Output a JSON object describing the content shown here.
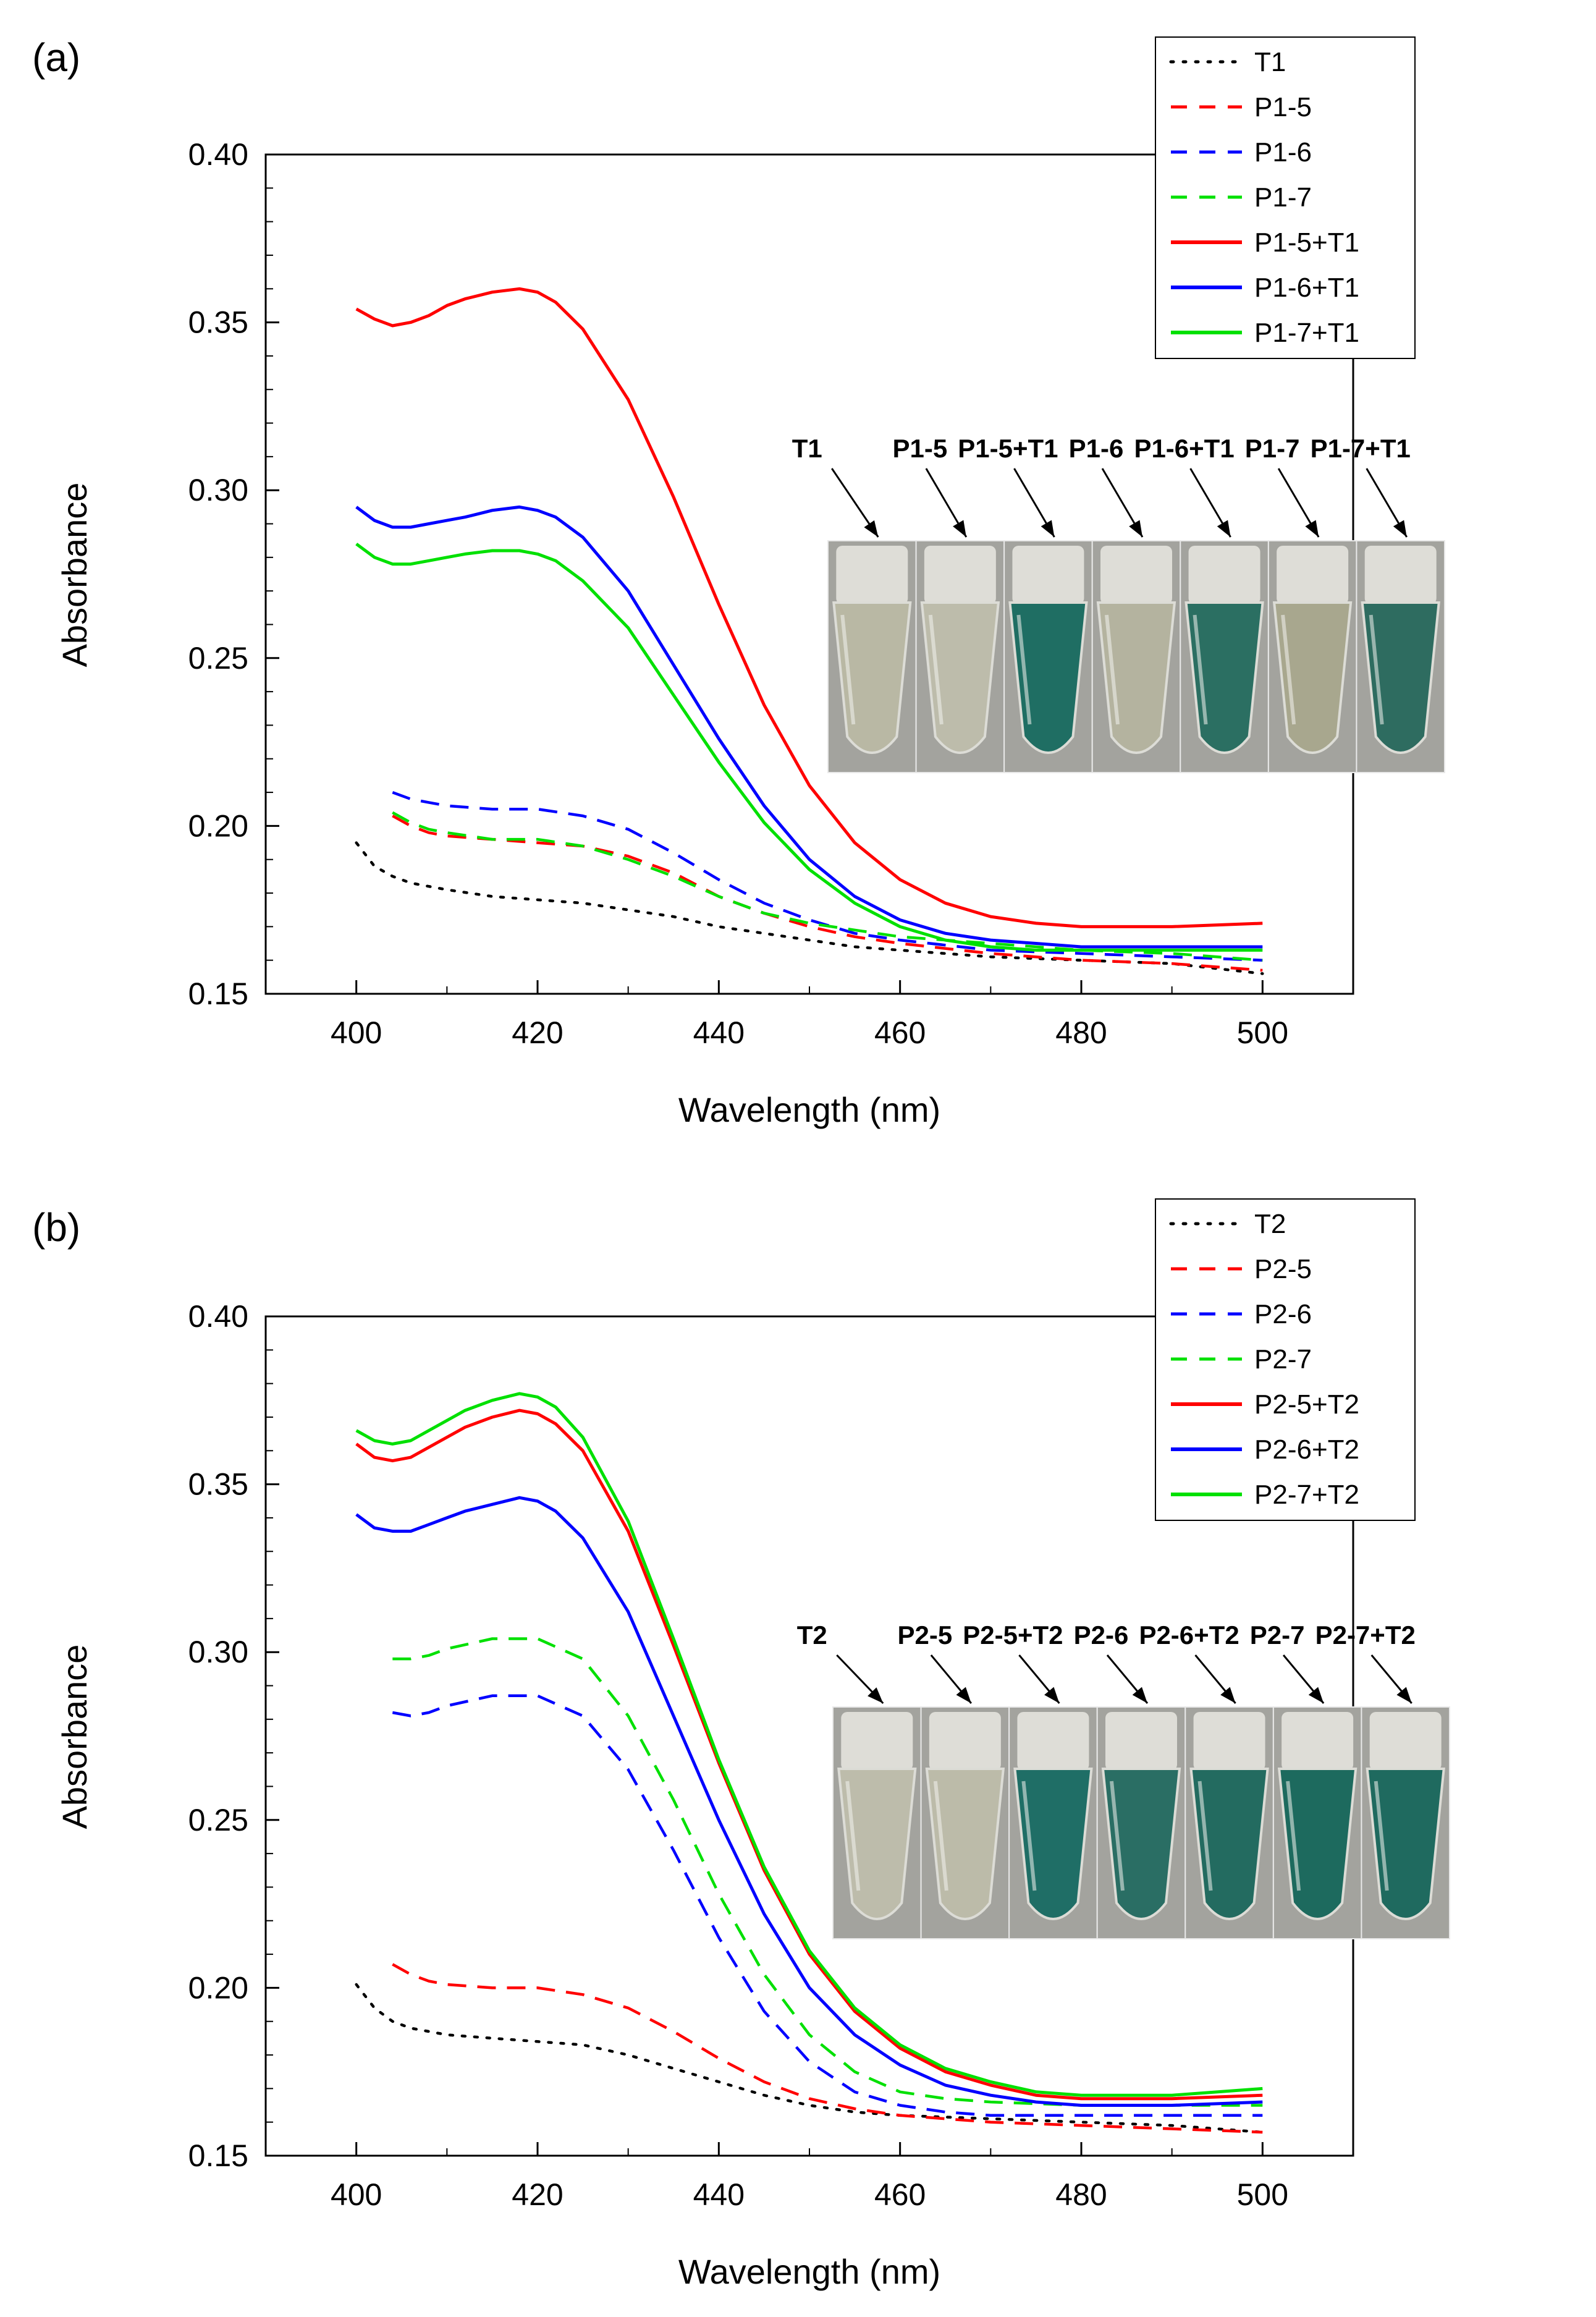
{
  "chart_data": [
    {
      "panel_label": "(a)",
      "type": "line",
      "xlabel": "Wavelength (nm)",
      "ylabel": "Absorbance",
      "xlim": [
        390,
        510
      ],
      "ylim": [
        0.15,
        0.4
      ],
      "xticks": [
        "400",
        "420",
        "440",
        "460",
        "480",
        "500"
      ],
      "yticks": [
        "0.15",
        "0.20",
        "0.25",
        "0.30",
        "0.35",
        "0.40"
      ],
      "legend_position": "top-right",
      "series": [
        {
          "name": "T1",
          "style": "dotted",
          "color": "#000000",
          "x": [
            400,
            402,
            404,
            406,
            408,
            410,
            415,
            420,
            425,
            430,
            435,
            440,
            445,
            450,
            455,
            460,
            470,
            480,
            490,
            500
          ],
          "y": [
            0.195,
            0.188,
            0.185,
            0.183,
            0.182,
            0.181,
            0.179,
            0.178,
            0.177,
            0.175,
            0.173,
            0.17,
            0.168,
            0.166,
            0.164,
            0.163,
            0.161,
            0.16,
            0.159,
            0.156
          ]
        },
        {
          "name": "P1-5",
          "style": "dashed",
          "color": "#ff0000",
          "x": [
            404,
            406,
            408,
            410,
            415,
            420,
            425,
            430,
            435,
            440,
            445,
            450,
            455,
            460,
            470,
            480,
            490,
            500
          ],
          "y": [
            0.203,
            0.2,
            0.198,
            0.197,
            0.196,
            0.195,
            0.194,
            0.191,
            0.186,
            0.179,
            0.174,
            0.17,
            0.167,
            0.165,
            0.162,
            0.16,
            0.159,
            0.157
          ]
        },
        {
          "name": "P1-6",
          "style": "dashed",
          "color": "#0000ff",
          "x": [
            404,
            406,
            408,
            410,
            415,
            420,
            425,
            430,
            435,
            440,
            445,
            450,
            455,
            460,
            470,
            480,
            490,
            500
          ],
          "y": [
            0.21,
            0.208,
            0.207,
            0.206,
            0.205,
            0.205,
            0.203,
            0.199,
            0.192,
            0.184,
            0.177,
            0.172,
            0.168,
            0.166,
            0.163,
            0.162,
            0.161,
            0.16
          ]
        },
        {
          "name": "P1-7",
          "style": "dashed",
          "color": "#00e000",
          "x": [
            404,
            406,
            408,
            410,
            415,
            420,
            425,
            430,
            435,
            440,
            445,
            450,
            455,
            460,
            470,
            480,
            490,
            500
          ],
          "y": [
            0.204,
            0.201,
            0.199,
            0.198,
            0.196,
            0.196,
            0.194,
            0.19,
            0.185,
            0.179,
            0.174,
            0.171,
            0.169,
            0.167,
            0.165,
            0.163,
            0.162,
            0.16
          ]
        },
        {
          "name": "P1-5+T1",
          "style": "solid",
          "color": "#ff0000",
          "x": [
            400,
            402,
            404,
            406,
            408,
            410,
            412,
            415,
            418,
            420,
            422,
            425,
            430,
            435,
            440,
            445,
            450,
            455,
            460,
            465,
            470,
            475,
            480,
            490,
            500
          ],
          "y": [
            0.354,
            0.351,
            0.349,
            0.35,
            0.352,
            0.355,
            0.357,
            0.359,
            0.36,
            0.359,
            0.356,
            0.348,
            0.327,
            0.298,
            0.266,
            0.236,
            0.212,
            0.195,
            0.184,
            0.177,
            0.173,
            0.171,
            0.17,
            0.17,
            0.171
          ]
        },
        {
          "name": "P1-6+T1",
          "style": "solid",
          "color": "#0000ff",
          "x": [
            400,
            402,
            404,
            406,
            408,
            410,
            412,
            415,
            418,
            420,
            422,
            425,
            430,
            435,
            440,
            445,
            450,
            455,
            460,
            465,
            470,
            475,
            480,
            490,
            500
          ],
          "y": [
            0.295,
            0.291,
            0.289,
            0.289,
            0.29,
            0.291,
            0.292,
            0.294,
            0.295,
            0.294,
            0.292,
            0.286,
            0.27,
            0.248,
            0.226,
            0.206,
            0.19,
            0.179,
            0.172,
            0.168,
            0.166,
            0.165,
            0.164,
            0.164,
            0.164
          ]
        },
        {
          "name": "P1-7+T1",
          "style": "solid",
          "color": "#00e000",
          "x": [
            400,
            402,
            404,
            406,
            408,
            410,
            412,
            415,
            418,
            420,
            422,
            425,
            430,
            435,
            440,
            445,
            450,
            455,
            460,
            465,
            470,
            475,
            480,
            490,
            500
          ],
          "y": [
            0.284,
            0.28,
            0.278,
            0.278,
            0.279,
            0.28,
            0.281,
            0.282,
            0.282,
            0.281,
            0.279,
            0.273,
            0.259,
            0.239,
            0.219,
            0.201,
            0.187,
            0.177,
            0.17,
            0.166,
            0.164,
            0.163,
            0.163,
            0.163,
            0.163
          ]
        }
      ],
      "photo_labels": [
        "T1",
        "P1-5",
        "P1-5+T1",
        "P1-6",
        "P1-6+T1",
        "P1-7",
        "P1-7+T1"
      ],
      "photo_tube_colors": [
        "#b9b8a4",
        "#bdbcab",
        "#1f6e63",
        "#b4b39f",
        "#2b6f62",
        "#a8a78e",
        "#2e6c60"
      ]
    },
    {
      "panel_label": "(b)",
      "type": "line",
      "xlabel": "Wavelength (nm)",
      "ylabel": "Absorbance",
      "xlim": [
        390,
        510
      ],
      "ylim": [
        0.15,
        0.4
      ],
      "xticks": [
        "400",
        "420",
        "440",
        "460",
        "480",
        "500"
      ],
      "yticks": [
        "0.15",
        "0.20",
        "0.25",
        "0.30",
        "0.35",
        "0.40"
      ],
      "legend_position": "top-right",
      "series": [
        {
          "name": "T2",
          "style": "dotted",
          "color": "#000000",
          "x": [
            400,
            402,
            404,
            406,
            408,
            410,
            415,
            420,
            425,
            430,
            435,
            440,
            445,
            450,
            455,
            460,
            470,
            480,
            490,
            500
          ],
          "y": [
            0.201,
            0.194,
            0.19,
            0.188,
            0.187,
            0.186,
            0.185,
            0.184,
            0.183,
            0.18,
            0.176,
            0.172,
            0.168,
            0.165,
            0.163,
            0.162,
            0.161,
            0.16,
            0.159,
            0.157
          ]
        },
        {
          "name": "P2-5",
          "style": "dashed",
          "color": "#ff0000",
          "x": [
            404,
            406,
            408,
            410,
            415,
            420,
            425,
            430,
            435,
            440,
            445,
            450,
            455,
            460,
            470,
            480,
            490,
            500
          ],
          "y": [
            0.207,
            0.204,
            0.202,
            0.201,
            0.2,
            0.2,
            0.198,
            0.194,
            0.187,
            0.179,
            0.172,
            0.167,
            0.164,
            0.162,
            0.16,
            0.159,
            0.158,
            0.157
          ]
        },
        {
          "name": "P2-6",
          "style": "dashed",
          "color": "#0000ff",
          "x": [
            404,
            406,
            408,
            410,
            415,
            420,
            425,
            430,
            435,
            440,
            445,
            450,
            455,
            460,
            465,
            470,
            480,
            490,
            500
          ],
          "y": [
            0.282,
            0.281,
            0.282,
            0.284,
            0.287,
            0.287,
            0.281,
            0.265,
            0.241,
            0.215,
            0.193,
            0.178,
            0.169,
            0.165,
            0.163,
            0.162,
            0.162,
            0.162,
            0.162
          ]
        },
        {
          "name": "P2-7",
          "style": "dashed",
          "color": "#00e000",
          "x": [
            404,
            406,
            408,
            410,
            415,
            420,
            425,
            430,
            435,
            440,
            445,
            450,
            455,
            460,
            465,
            470,
            480,
            490,
            500
          ],
          "y": [
            0.298,
            0.298,
            0.299,
            0.301,
            0.304,
            0.304,
            0.298,
            0.281,
            0.256,
            0.228,
            0.204,
            0.186,
            0.175,
            0.169,
            0.167,
            0.166,
            0.165,
            0.165,
            0.165
          ]
        },
        {
          "name": "P2-5+T2",
          "style": "solid",
          "color": "#ff0000",
          "x": [
            400,
            402,
            404,
            406,
            408,
            410,
            412,
            415,
            418,
            420,
            422,
            425,
            430,
            435,
            440,
            445,
            450,
            455,
            460,
            465,
            470,
            475,
            480,
            490,
            500
          ],
          "y": [
            0.362,
            0.358,
            0.357,
            0.358,
            0.361,
            0.364,
            0.367,
            0.37,
            0.372,
            0.371,
            0.368,
            0.36,
            0.336,
            0.302,
            0.267,
            0.235,
            0.21,
            0.193,
            0.182,
            0.175,
            0.171,
            0.168,
            0.167,
            0.167,
            0.168
          ]
        },
        {
          "name": "P2-6+T2",
          "style": "solid",
          "color": "#0000ff",
          "x": [
            400,
            402,
            404,
            406,
            408,
            410,
            412,
            415,
            418,
            420,
            422,
            425,
            430,
            435,
            440,
            445,
            450,
            455,
            460,
            465,
            470,
            475,
            480,
            490,
            500
          ],
          "y": [
            0.341,
            0.337,
            0.336,
            0.336,
            0.338,
            0.34,
            0.342,
            0.344,
            0.346,
            0.345,
            0.342,
            0.334,
            0.312,
            0.281,
            0.25,
            0.222,
            0.2,
            0.186,
            0.177,
            0.171,
            0.168,
            0.166,
            0.165,
            0.165,
            0.166
          ]
        },
        {
          "name": "P2-7+T2",
          "style": "solid",
          "color": "#00e000",
          "x": [
            400,
            402,
            404,
            406,
            408,
            410,
            412,
            415,
            418,
            420,
            422,
            425,
            430,
            435,
            440,
            445,
            450,
            455,
            460,
            465,
            470,
            475,
            480,
            490,
            500
          ],
          "y": [
            0.366,
            0.363,
            0.362,
            0.363,
            0.366,
            0.369,
            0.372,
            0.375,
            0.377,
            0.376,
            0.373,
            0.364,
            0.339,
            0.304,
            0.268,
            0.236,
            0.211,
            0.194,
            0.183,
            0.176,
            0.172,
            0.169,
            0.168,
            0.168,
            0.17
          ]
        }
      ],
      "photo_labels": [
        "T2",
        "P2-5",
        "P2-5+T2",
        "P2-6",
        "P2-6+T2",
        "P2-7",
        "P2-7+T2"
      ],
      "photo_tube_colors": [
        "#bdbcab",
        "#bcbba9",
        "#1f6e66",
        "#2a6e64",
        "#236b60",
        "#1d6a5e",
        "#1f6a5f"
      ]
    }
  ]
}
